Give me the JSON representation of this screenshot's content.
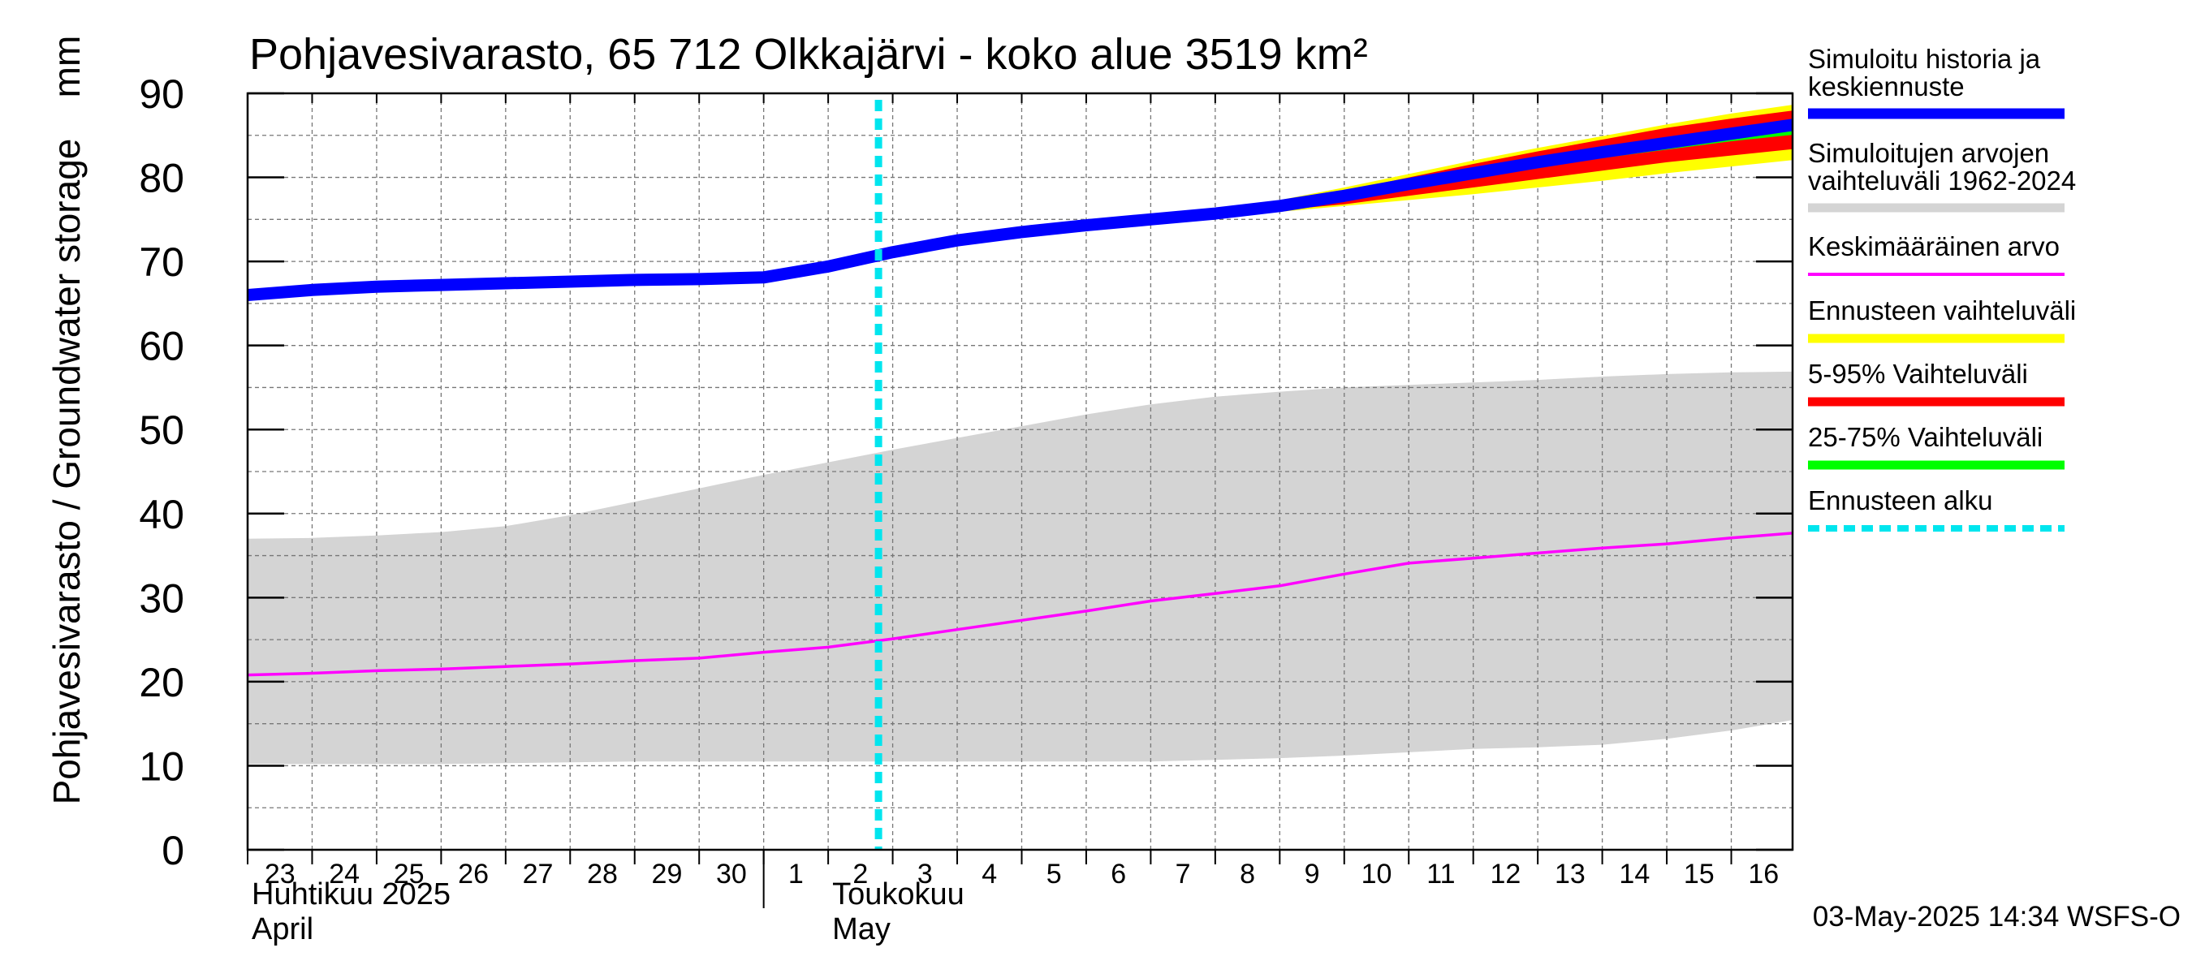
{
  "chart_data": {
    "type": "area",
    "title": "Pohjavesivarasto, 65 712 Olkkajärvi - koko alue 3519 km²",
    "ylabel": "Pohjavesivarasto / Groundwater storage",
    "yunit": "mm",
    "ylim": [
      0,
      90
    ],
    "yticks": [
      0,
      10,
      20,
      30,
      40,
      50,
      60,
      70,
      80,
      90
    ],
    "x_start": "2025-04-23",
    "x_end": "2025-05-16",
    "xticks": [
      {
        "date": "2025-04-23",
        "label": "23"
      },
      {
        "date": "2025-04-24",
        "label": "24"
      },
      {
        "date": "2025-04-25",
        "label": "25"
      },
      {
        "date": "2025-04-26",
        "label": "26"
      },
      {
        "date": "2025-04-27",
        "label": "27"
      },
      {
        "date": "2025-04-28",
        "label": "28"
      },
      {
        "date": "2025-04-29",
        "label": "29"
      },
      {
        "date": "2025-04-30",
        "label": "30"
      },
      {
        "date": "2025-05-01",
        "label": "1"
      },
      {
        "date": "2025-05-02",
        "label": "2"
      },
      {
        "date": "2025-05-03",
        "label": "3"
      },
      {
        "date": "2025-05-04",
        "label": "4"
      },
      {
        "date": "2025-05-05",
        "label": "5"
      },
      {
        "date": "2025-05-06",
        "label": "6"
      },
      {
        "date": "2025-05-07",
        "label": "7"
      },
      {
        "date": "2025-05-08",
        "label": "8"
      },
      {
        "date": "2025-05-09",
        "label": "9"
      },
      {
        "date": "2025-05-10",
        "label": "10"
      },
      {
        "date": "2025-05-11",
        "label": "11"
      },
      {
        "date": "2025-05-12",
        "label": "12"
      },
      {
        "date": "2025-05-13",
        "label": "13"
      },
      {
        "date": "2025-05-14",
        "label": "14"
      },
      {
        "date": "2025-05-15",
        "label": "15"
      },
      {
        "date": "2025-05-16",
        "label": "16"
      }
    ],
    "month_labels": [
      {
        "date": "2025-04-23",
        "line1": "Huhtikuu  2025",
        "line2": "April"
      },
      {
        "date": "2025-05-02",
        "line1": "Toukokuu",
        "line2": "May"
      }
    ],
    "month_divider": "2025-05-01",
    "forecast_start": "2025-05-03",
    "grid": true,
    "legend_placement": "right",
    "timestamp": "03-May-2025 14:34 WSFS-O",
    "colors": {
      "history": "#0000ff",
      "hist_range": "#d4d4d4",
      "mean": "#ff00ff",
      "forecast_range": "#ffff00",
      "p5_95": "#ff0000",
      "p25_75": "#00ff00",
      "forecast_start": "#00e5ee"
    },
    "legend": [
      {
        "key": "history",
        "line1": "Simuloitu historia ja",
        "line2": "keskiennuste",
        "style": "thick"
      },
      {
        "key": "hist_range",
        "line1": "Simuloitujen arvojen",
        "line2": "vaihteluväli 1962-2024",
        "style": "medium"
      },
      {
        "key": "mean",
        "line1": "Keskimääräinen arvo",
        "style": "thin"
      },
      {
        "key": "forecast_range",
        "line1": "Ennusteen vaihteluväli",
        "style": "medium"
      },
      {
        "key": "p5_95",
        "line1": "5-95% Vaihteluväli",
        "style": "medium"
      },
      {
        "key": "p25_75",
        "line1": "25-75% Vaihteluväli",
        "style": "medium"
      },
      {
        "key": "forecast_start",
        "line1": "Ennusteen alku",
        "style": "dashed"
      }
    ],
    "series": {
      "history": {
        "x": [
          "2025-04-23",
          "2025-04-24",
          "2025-04-25",
          "2025-04-26",
          "2025-04-27",
          "2025-04-28",
          "2025-04-29",
          "2025-04-30",
          "2025-05-01",
          "2025-05-02",
          "2025-05-03",
          "2025-05-04",
          "2025-05-05",
          "2025-05-06",
          "2025-05-07",
          "2025-05-08",
          "2025-05-09",
          "2025-05-10",
          "2025-05-11",
          "2025-05-12",
          "2025-05-13",
          "2025-05-14",
          "2025-05-15",
          "2025-05-16",
          "2025-05-17"
        ],
        "y": [
          66.0,
          66.6,
          67.0,
          67.2,
          67.4,
          67.6,
          67.8,
          67.9,
          68.1,
          69.4,
          71.1,
          72.5,
          73.5,
          74.3,
          75.0,
          75.7,
          76.6,
          77.8,
          79.2,
          80.5,
          81.8,
          83.0,
          84.1,
          85.2,
          86.3
        ]
      },
      "hist_range": {
        "x": [
          "2025-04-23",
          "2025-04-24",
          "2025-04-25",
          "2025-04-26",
          "2025-04-27",
          "2025-04-28",
          "2025-04-29",
          "2025-04-30",
          "2025-05-01",
          "2025-05-02",
          "2025-05-03",
          "2025-05-04",
          "2025-05-05",
          "2025-05-06",
          "2025-05-07",
          "2025-05-08",
          "2025-05-09",
          "2025-05-10",
          "2025-05-11",
          "2025-05-12",
          "2025-05-13",
          "2025-05-14",
          "2025-05-15",
          "2025-05-16",
          "2025-05-17"
        ],
        "lower": [
          10.2,
          10.2,
          10.2,
          10.2,
          10.3,
          10.4,
          10.5,
          10.5,
          10.5,
          10.5,
          10.5,
          10.5,
          10.5,
          10.5,
          10.5,
          10.7,
          10.9,
          11.2,
          11.6,
          12.0,
          12.2,
          12.5,
          13.2,
          14.2,
          15.5
        ],
        "upper": [
          37.0,
          37.1,
          37.4,
          37.8,
          38.5,
          39.8,
          41.4,
          43.0,
          44.6,
          46.1,
          47.6,
          49.0,
          50.4,
          51.8,
          53.0,
          53.9,
          54.5,
          55.0,
          55.3,
          55.6,
          55.9,
          56.3,
          56.6,
          56.8,
          56.9
        ]
      },
      "mean": {
        "x": [
          "2025-04-23",
          "2025-04-24",
          "2025-04-25",
          "2025-04-26",
          "2025-04-27",
          "2025-04-28",
          "2025-04-29",
          "2025-04-30",
          "2025-05-01",
          "2025-05-02",
          "2025-05-03",
          "2025-05-04",
          "2025-05-05",
          "2025-05-06",
          "2025-05-07",
          "2025-05-08",
          "2025-05-09",
          "2025-05-10",
          "2025-05-11",
          "2025-05-12",
          "2025-05-13",
          "2025-05-14",
          "2025-05-15",
          "2025-05-16",
          "2025-05-17"
        ],
        "y": [
          20.8,
          21.0,
          21.3,
          21.5,
          21.8,
          22.1,
          22.5,
          22.8,
          23.5,
          24.1,
          25.1,
          26.2,
          27.3,
          28.4,
          29.6,
          30.5,
          31.4,
          32.8,
          34.1,
          34.7,
          35.3,
          35.9,
          36.4,
          37.1,
          37.7
        ]
      },
      "forecast_range": {
        "x": [
          "2025-05-07",
          "2025-05-08",
          "2025-05-09",
          "2025-05-10",
          "2025-05-11",
          "2025-05-12",
          "2025-05-13",
          "2025-05-14",
          "2025-05-15",
          "2025-05-16",
          "2025-05-17"
        ],
        "lower": [
          75.0,
          75.5,
          75.9,
          76.6,
          77.3,
          78.0,
          78.8,
          79.6,
          80.5,
          81.3,
          82.1
        ],
        "upper": [
          75.2,
          76.1,
          77.3,
          78.8,
          80.4,
          82.0,
          83.5,
          84.9,
          86.3,
          87.6,
          88.7
        ]
      },
      "p5_95": {
        "x": [
          "2025-05-07",
          "2025-05-08",
          "2025-05-09",
          "2025-05-10",
          "2025-05-11",
          "2025-05-12",
          "2025-05-13",
          "2025-05-14",
          "2025-05-15",
          "2025-05-16",
          "2025-05-17"
        ],
        "lower": [
          75.0,
          75.6,
          76.1,
          76.8,
          77.8,
          78.8,
          79.8,
          80.8,
          81.8,
          82.6,
          83.4
        ],
        "upper": [
          75.1,
          75.9,
          77.0,
          78.4,
          80.0,
          81.6,
          83.1,
          84.5,
          85.9,
          87.0,
          88.0
        ]
      },
      "p25_75": {
        "x": [
          "2025-05-07",
          "2025-05-08",
          "2025-05-09",
          "2025-05-10",
          "2025-05-11",
          "2025-05-12",
          "2025-05-13",
          "2025-05-14",
          "2025-05-15",
          "2025-05-16",
          "2025-05-17"
        ],
        "lower": [
          75.0,
          75.7,
          76.4,
          77.3,
          78.6,
          79.9,
          81.1,
          82.3,
          83.3,
          84.3,
          85.1
        ],
        "upper": [
          75.1,
          75.8,
          76.8,
          78.1,
          79.6,
          81.0,
          82.4,
          83.6,
          84.8,
          85.9,
          86.8
        ]
      }
    }
  }
}
